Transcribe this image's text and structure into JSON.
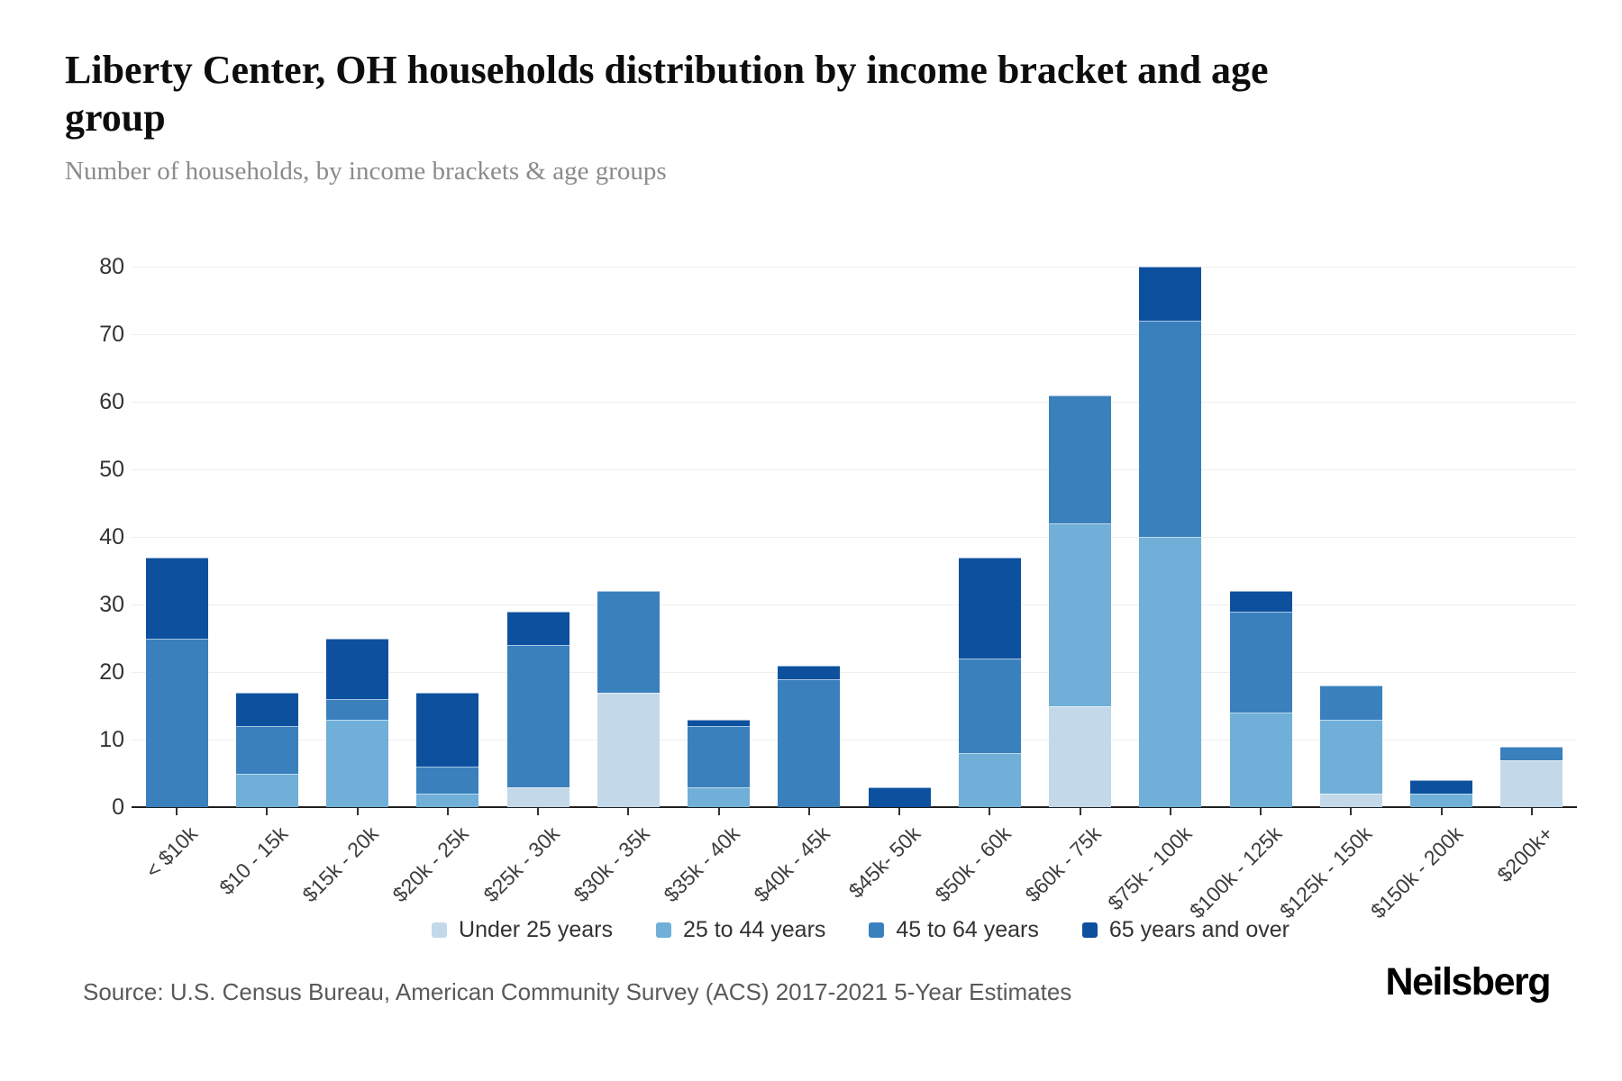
{
  "header": {
    "title": "Liberty Center, OH households distribution by income bracket and age group",
    "subtitle": "Number of households, by income brackets & age groups"
  },
  "chart_data": {
    "type": "bar",
    "stacked": true,
    "title": "Liberty Center, OH households distribution by income bracket and age group",
    "subtitle": "Number of households, by income brackets & age groups",
    "xlabel": "",
    "ylabel": "",
    "ylim": [
      0,
      80
    ],
    "ytick_step": 10,
    "grid": true,
    "legend_position": "bottom",
    "categories": [
      "< $10k",
      "$10 - 15k",
      "$15k - 20k",
      "$20k - 25k",
      "$25k - 30k",
      "$30k - 35k",
      "$35k - 40k",
      "$40k - 45k",
      "$45k- 50k",
      "$50k - 60k",
      "$60k - 75k",
      "$75k - 100k",
      "$100k - 125k",
      "$125k - 150k",
      "$150k - 200k",
      "$200k+"
    ],
    "series": [
      {
        "name": "Under 25 years",
        "color": "#c3d9ea",
        "values": [
          0,
          0,
          0,
          0,
          3,
          17,
          0,
          0,
          0,
          0,
          15,
          0,
          0,
          2,
          0,
          7
        ]
      },
      {
        "name": "25 to 44 years",
        "color": "#6fafd8",
        "values": [
          0,
          5,
          13,
          2,
          0,
          0,
          3,
          0,
          0,
          8,
          27,
          40,
          14,
          11,
          2,
          0
        ]
      },
      {
        "name": "45 to 64 years",
        "color": "#3a80bd",
        "values": [
          25,
          7,
          3,
          4,
          21,
          15,
          9,
          19,
          0,
          14,
          19,
          32,
          15,
          5,
          0,
          2
        ]
      },
      {
        "name": "65 years and over",
        "color": "#0d509e",
        "values": [
          12,
          5,
          9,
          11,
          5,
          0,
          1,
          2,
          3,
          15,
          0,
          8,
          3,
          0,
          2,
          0
        ]
      }
    ],
    "totals": [
      37,
      17,
      25,
      17,
      29,
      32,
      13,
      21,
      3,
      37,
      61,
      80,
      32,
      18,
      4,
      9
    ]
  },
  "footer": {
    "source": "Source: U.S. Census Bureau, American Community Survey (ACS) 2017-2021 5-Year Estimates",
    "brand": "Neilsberg"
  }
}
